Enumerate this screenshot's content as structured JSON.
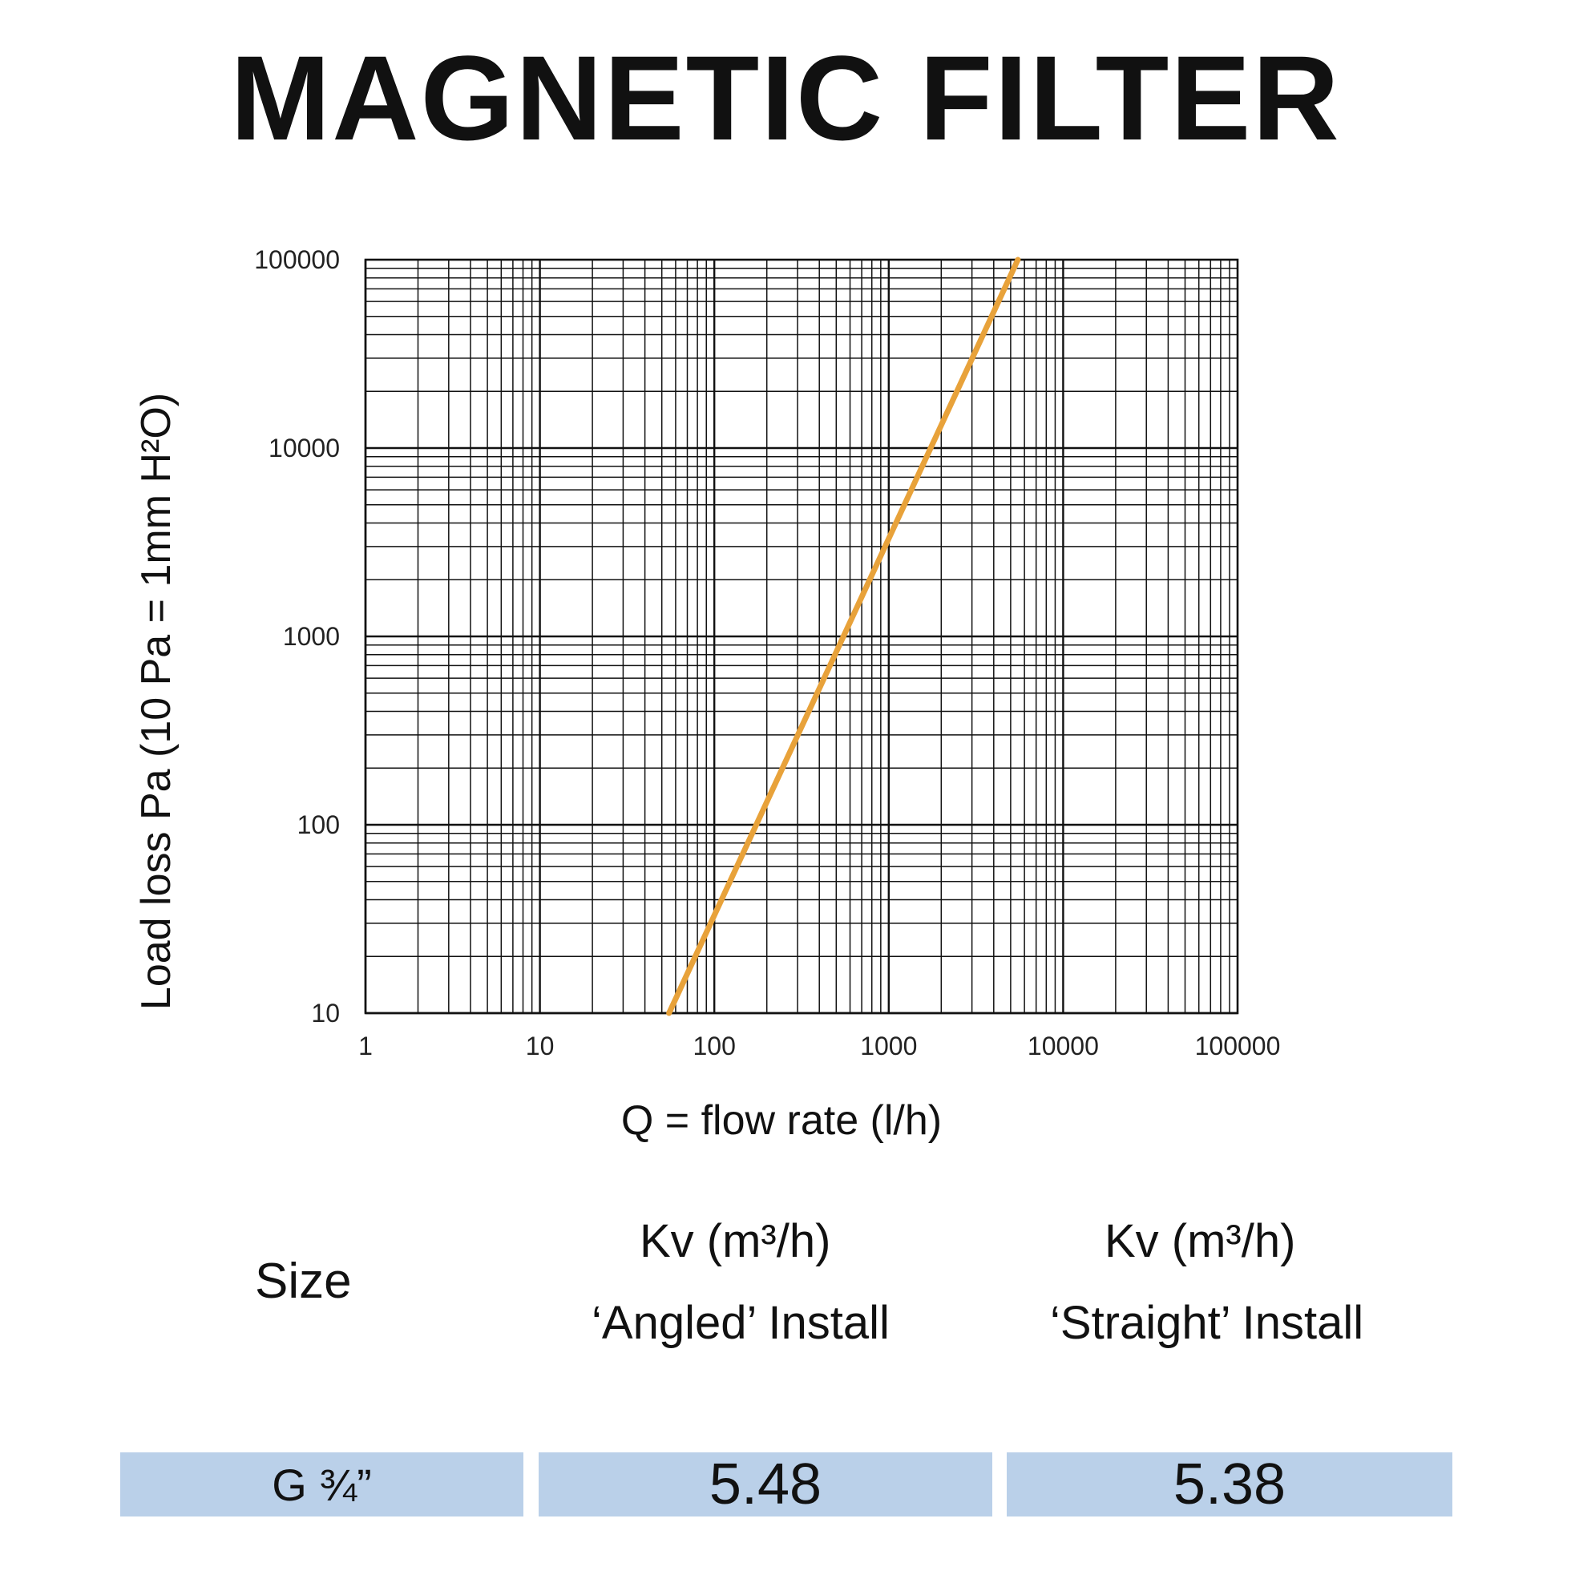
{
  "title": "MAGNETIC FILTER",
  "chart_data": {
    "type": "line",
    "xlabel": "Q = flow rate (l/h)",
    "ylabel": "Load loss Pa (10 Pa = 1mm H²O)",
    "xscale": "log",
    "yscale": "log",
    "xlim": [
      1,
      100000
    ],
    "ylim": [
      10,
      100000
    ],
    "xticks": [
      "1",
      "10",
      "100",
      "1000",
      "10000",
      "100000"
    ],
    "yticks": [
      "10",
      "100",
      "1000",
      "10000",
      "100000"
    ],
    "grid": true,
    "series": [
      {
        "color": "#e8a23a",
        "x": [
          55,
          5500
        ],
        "y": [
          10,
          100000
        ]
      }
    ]
  },
  "table": {
    "headers": {
      "size": "Size",
      "angled_line1": "Kv (m³/h)",
      "angled_line2": "‘Angled’ Install",
      "straight_line1": "Kv (m³/h)",
      "straight_line2": "‘Straight’ Install"
    },
    "rows": [
      {
        "size": "G ¾”",
        "angled": "5.48",
        "straight": "5.38"
      }
    ],
    "row_color": "#bad0e9"
  }
}
